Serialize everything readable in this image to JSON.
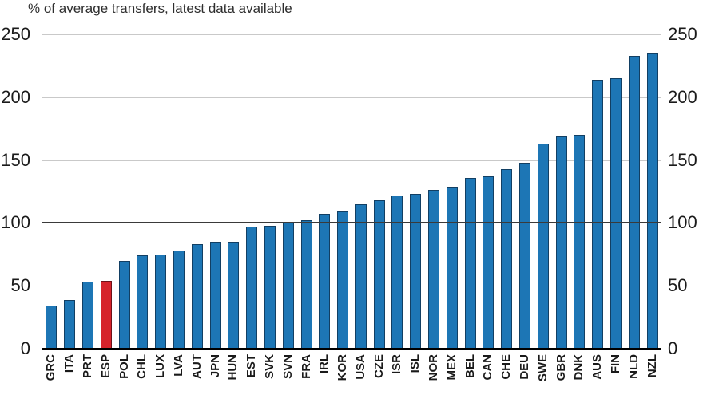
{
  "title": "% of average transfers, latest data available",
  "chart_data": {
    "type": "bar",
    "title": "% of average transfers, latest data available",
    "categories": [
      "GRC",
      "ITA",
      "PRT",
      "ESP",
      "POL",
      "CHL",
      "LUX",
      "LVA",
      "AUT",
      "JPN",
      "HUN",
      "EST",
      "SVK",
      "SVN",
      "FRA",
      "IRL",
      "KOR",
      "USA",
      "CZE",
      "ISR",
      "ISL",
      "NOR",
      "MEX",
      "BEL",
      "CAN",
      "CHE",
      "DEU",
      "SWE",
      "GBR",
      "DNK",
      "AUS",
      "FIN",
      "NLD",
      "NZL"
    ],
    "values": [
      34,
      39,
      53,
      54,
      70,
      74,
      75,
      78,
      83,
      85,
      85,
      97,
      98,
      100,
      102,
      107,
      109,
      115,
      118,
      122,
      123,
      126,
      129,
      136,
      137,
      143,
      148,
      163,
      169,
      170,
      214,
      215,
      233,
      235
    ],
    "highlight_category": "ESP",
    "xlabel": "",
    "ylabel": "",
    "ylim": [
      0,
      250
    ],
    "yticks": [
      0,
      50,
      100,
      150,
      200,
      250
    ],
    "reference_line": 100,
    "grid": true,
    "y_axis_labels_position": "both-sides",
    "x_label_rotation_deg": 90,
    "legend": "none",
    "colors": {
      "bar_fill": "#1d76b5",
      "bar_border": "#123f63",
      "highlight_fill": "#d6232b",
      "highlight_border": "#6e1119",
      "gridline": "#c9c9c9",
      "reference_line": "#3a3a3a",
      "axis_line": "#000000",
      "text": "#1a1a1a"
    }
  }
}
